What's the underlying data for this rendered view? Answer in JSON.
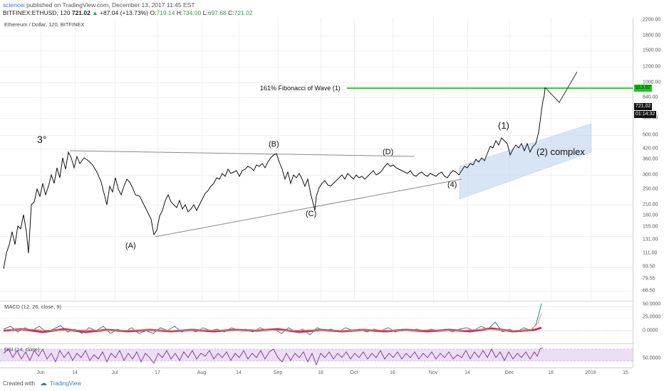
{
  "header": {
    "username": "sciencei",
    "published": "published on TradingView.com, December 13, 2017 11:45 EST",
    "symbol": "BITFINEX:ETHUSD, 120",
    "last": "721.02",
    "change": "+87.04 (+13.73%)",
    "o_label": "O:",
    "o": "719.14",
    "h_label": "H:",
    "h": "734.00",
    "l_label": "L:",
    "l": "697.68",
    "c_label": "C:",
    "c": "721.02"
  },
  "main_pane": {
    "title": "Ethereum / Dollar, 120, BITFINEX",
    "fib_label": "161% Fibonacci of Wave (1)",
    "annotations": {
      "degree": "3°",
      "A": "(A)",
      "B": "(B)",
      "C": "(C)",
      "D": "(D)",
      "w1": "(1)",
      "w2": "(2) complex",
      "w4": "(4)"
    },
    "colors": {
      "fib_line": "#1ee01e",
      "channel": "#c9dcf1",
      "price": "#111111"
    }
  },
  "price_axis": {
    "ticks": [
      "2200.00",
      "1800.00",
      "1500.00",
      "1200.00",
      "1000.00",
      "840.00",
      "600.00",
      "500.00",
      "420.00",
      "360.00",
      "300.00",
      "250.00",
      "210.00",
      "180.00",
      "155.00",
      "131.00",
      "111.00",
      "93.50",
      "79.55",
      "68.50"
    ],
    "fib_tag": "913.02",
    "price_tag": "721.02",
    "timer_tag": "01:14:32"
  },
  "macd_pane": {
    "title": "MACD (12, 26, close, 9)",
    "ticks": [
      "50.0000",
      "25.0000",
      "0.0000"
    ]
  },
  "rsi_pane": {
    "title": "RSI (14, close)",
    "ticks": [
      "50.0000"
    ]
  },
  "time_axis": {
    "ticks": [
      "Jun",
      "14",
      "Jul",
      "17",
      "Aug",
      "14",
      "Sep",
      "18",
      "Oct",
      "16",
      "Nov",
      "14",
      "Dec",
      "18",
      "2018",
      "15"
    ]
  },
  "footer": {
    "created": "Created with",
    "brand": "TradingView"
  }
}
